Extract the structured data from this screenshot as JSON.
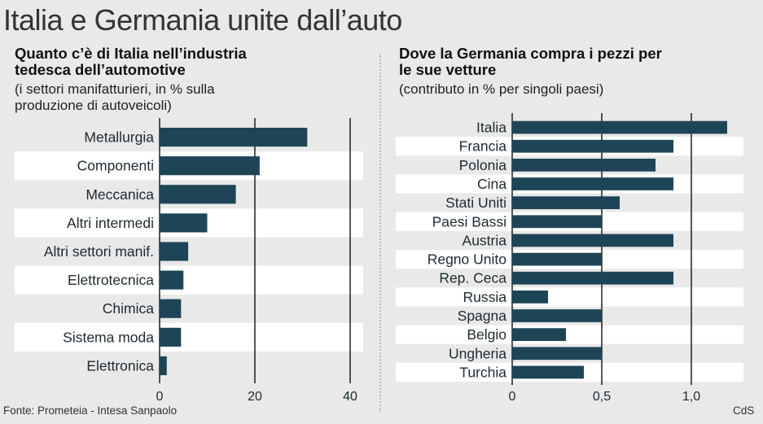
{
  "title": "Italia e Germania unite dall’auto",
  "source": "Fonte: Prometeia - Intesa Sanpaolo",
  "credit": "CdS",
  "left_panel": {
    "heading": "Quanto c’è di Italia nell’industria tedesca dell’automotive",
    "note": "(i settori manifatturieri, in % sulla produzione di autoveicoli)"
  },
  "right_panel": {
    "heading": "Dove la Germania compra i pezzi per le sue vetture",
    "note": "(contributo in % per singoli paesi)"
  },
  "colors": {
    "bar": "#1e4556",
    "row_band": "#ffffff",
    "background": "#e9e9e9",
    "gridline": "#111111"
  },
  "chart_data": [
    {
      "type": "bar",
      "orientation": "horizontal",
      "title": "Quanto c’è di Italia nell’industria tedesca dell’automotive",
      "subtitle": "(i settori manifatturieri, in % sulla produzione di autoveicoli)",
      "categories": [
        "Metallurgia",
        "Componenti",
        "Meccanica",
        "Altri intermedi",
        "Altri settori manif.",
        "Elettrotecnica",
        "Chimica",
        "Sistema moda",
        "Elettronica"
      ],
      "values": [
        31,
        21,
        16,
        10,
        6,
        5,
        4.5,
        4.5,
        1.5
      ],
      "xlim": [
        0,
        40
      ],
      "xticks": [
        0,
        20,
        40
      ],
      "xtick_labels": [
        "0",
        "20",
        "40"
      ],
      "grid": true
    },
    {
      "type": "bar",
      "orientation": "horizontal",
      "title": "Dove la Germania compra i pezzi per le sue vetture",
      "subtitle": "(contributo in % per singoli paesi)",
      "categories": [
        "Italia",
        "Francia",
        "Polonia",
        "Cina",
        "Stati Uniti",
        "Paesi Bassi",
        "Austria",
        "Regno Unito",
        "Rep. Ceca",
        "Russia",
        "Spagna",
        "Belgio",
        "Ungheria",
        "Turchia"
      ],
      "values": [
        1.2,
        0.9,
        0.8,
        0.9,
        0.6,
        0.5,
        0.9,
        0.5,
        0.9,
        0.2,
        0.5,
        0.3,
        0.5,
        0.4
      ],
      "xlim": [
        0,
        1.2
      ],
      "xticks": [
        0,
        0.5,
        1.0
      ],
      "xtick_labels": [
        "0",
        "0,5",
        "1,0"
      ],
      "grid": true
    }
  ]
}
